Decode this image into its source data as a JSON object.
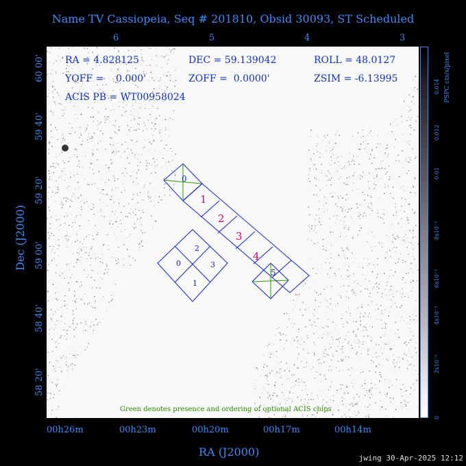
{
  "title": "Name TV Cassiopeia, Seq # 201810, Obsid 30093, ST Scheduled",
  "info": {
    "ra": "RA = 4.828125",
    "dec": "DEC = 59.139042",
    "roll": "ROLL = 48.0127",
    "yoff": "YOFF =    0.000'",
    "zoff": "ZOFF =  0.0000'",
    "zsim": "ZSIM = -6.13995",
    "acis": "ACIS PB = WT00958024"
  },
  "footnote": "Green denotes presence and ordering of optional ACIS chips",
  "stamp": "jwing 30-Apr-2025 12:12",
  "colors": {
    "axis": "#3b8bff",
    "chip_outline": "#1020d0",
    "chip_label": "#d0007a",
    "optional": "#2a9a00"
  },
  "chart_data": {
    "type": "heatmap",
    "title": "Name TV Cassiopeia, Seq # 201810, Obsid 30093, ST Scheduled",
    "xlabel": "RA (J2000)",
    "ylabel": "Dec (J2000)",
    "x_ticks": [
      "00h26m",
      "00h23m",
      "00h20m",
      "00h17m",
      "00h14m"
    ],
    "y_ticks": [
      "58 20'",
      "58 40'",
      "59 00'",
      "59 20'",
      "59 40'",
      "60 00'"
    ],
    "top_ticks": [
      "6",
      "5",
      "4",
      "3"
    ],
    "colorbar": {
      "label": "PSPC cts/s/pixel",
      "ticks": [
        "0",
        "2x10^-3",
        "4x10^-3",
        "6x10^-3",
        "8x10^-3",
        "0.01",
        "0.012",
        "0.014"
      ],
      "range": [
        0,
        0.014
      ]
    },
    "chips": {
      "aciss": [
        "0",
        "1",
        "2",
        "3",
        "4",
        "5"
      ],
      "acisi": [
        "0",
        "1",
        "2",
        "3"
      ]
    }
  }
}
